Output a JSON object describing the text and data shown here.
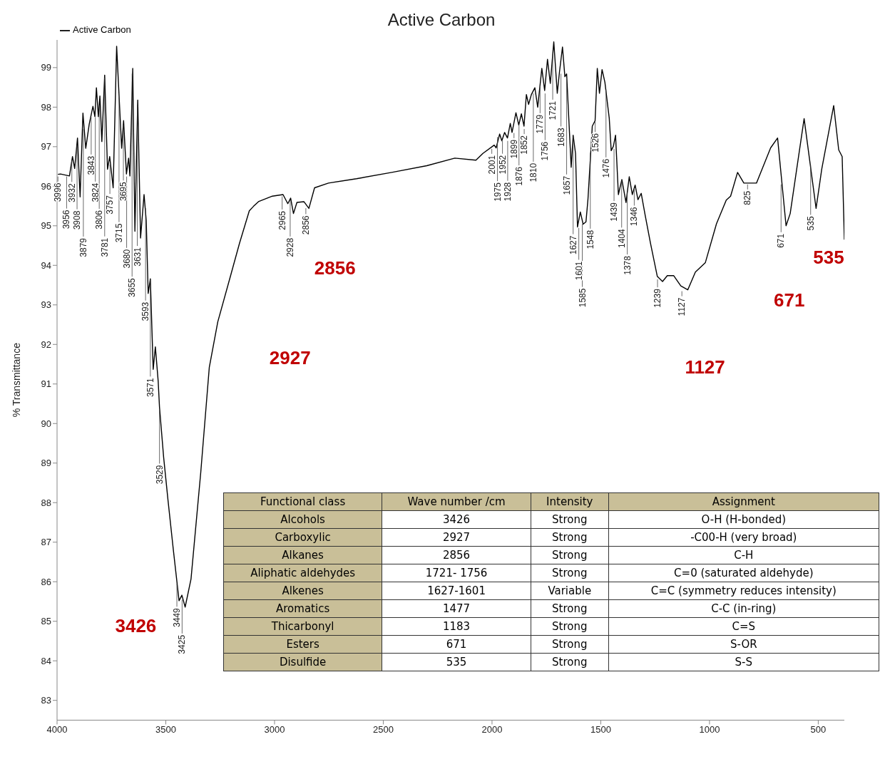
{
  "chart_data": [
    {
      "type": "line",
      "title": "Active Carbon",
      "ylabel": "% Transmittance",
      "xlim": [
        4000,
        380
      ],
      "xticks": [
        4000,
        3500,
        3000,
        2500,
        2000,
        1500,
        1000,
        500
      ],
      "ylim": [
        82.5,
        99.7
      ],
      "yticks": [
        83,
        84,
        85,
        86,
        87,
        88,
        89,
        90,
        91,
        92,
        93,
        94,
        95,
        96,
        97,
        98,
        99
      ],
      "grid": false,
      "legend": "top left",
      "marker": "none",
      "line_style": "solid",
      "series": [
        {
          "name": "Active Carbon",
          "color": "#000000",
          "x": [
            3996,
            3984,
            3943,
            3929,
            3919,
            3906,
            3894,
            3881,
            3868,
            3852,
            3835,
            3826,
            3819,
            3810,
            3803,
            3794,
            3781,
            3768,
            3758,
            3742,
            3726,
            3703,
            3694,
            3681,
            3671,
            3665,
            3652,
            3642,
            3629,
            3616,
            3600,
            3590,
            3581,
            3571,
            3558,
            3548,
            3535,
            3529,
            3510,
            3490,
            3465,
            3439,
            3426,
            3411,
            3384,
            3339,
            3300,
            3261,
            3200,
            3161,
            3116,
            3097,
            3074,
            3010,
            2961,
            2939,
            2926,
            2913,
            2897,
            2865,
            2842,
            2816,
            2752,
            2623,
            2461,
            2300,
            2171,
            2074,
            2042,
            1990,
            1981,
            1965,
            1955,
            1942,
            1929,
            1916,
            1908,
            1890,
            1877,
            1865,
            1853,
            1842,
            1832,
            1819,
            1803,
            1790,
            1771,
            1758,
            1745,
            1732,
            1716,
            1700,
            1690,
            1676,
            1665,
            1657,
            1636,
            1627,
            1616,
            1607,
            1594,
            1581,
            1568,
            1559,
            1539,
            1526,
            1516,
            1506,
            1494,
            1481,
            1461,
            1452,
            1442,
            1432,
            1419,
            1403,
            1384,
            1369,
            1355,
            1342,
            1329,
            1314,
            1295,
            1271,
            1240,
            1216,
            1194,
            1165,
            1132,
            1100,
            1065,
            1019,
            968,
            923,
            903,
            871,
            842,
            784,
            719,
            687,
            648,
            629,
            565,
            510,
            484,
            429,
            406,
            390,
            380
          ],
          "values": [
            96.3,
            96.31,
            96.26,
            96.75,
            96.45,
            97.22,
            95.73,
            97.85,
            96.96,
            97.57,
            98.02,
            97.76,
            98.49,
            97.76,
            98.28,
            97.13,
            98.81,
            96.43,
            96.75,
            95.96,
            99.54,
            96.96,
            97.66,
            96.31,
            96.71,
            96.26,
            98.98,
            94.86,
            98.18,
            94.69,
            95.79,
            95.14,
            93.29,
            93.66,
            91.37,
            91.94,
            91.07,
            90.42,
            89.15,
            88.07,
            86.79,
            85.52,
            85.66,
            85.36,
            86.07,
            88.78,
            91.42,
            92.57,
            93.78,
            94.56,
            95.38,
            95.49,
            95.61,
            95.75,
            95.79,
            95.56,
            95.7,
            95.31,
            95.59,
            95.61,
            95.44,
            95.96,
            96.08,
            96.19,
            96.35,
            96.52,
            96.71,
            96.66,
            96.83,
            97.04,
            96.97,
            97.32,
            97.15,
            97.36,
            97.22,
            97.59,
            97.36,
            97.86,
            97.55,
            97.83,
            97.52,
            98.32,
            98.07,
            98.32,
            98.49,
            98.0,
            98.98,
            98.42,
            99.21,
            98.6,
            99.65,
            98.35,
            98.88,
            99.52,
            98.77,
            98.84,
            96.48,
            97.29,
            96.83,
            94.97,
            95.35,
            95.04,
            95.1,
            95.66,
            97.52,
            97.66,
            98.98,
            98.35,
            98.95,
            98.63,
            97.72,
            96.9,
            97.01,
            97.29,
            95.79,
            96.17,
            95.59,
            96.24,
            95.79,
            96.03,
            95.66,
            95.82,
            95.24,
            94.55,
            93.72,
            93.59,
            93.74,
            93.74,
            93.48,
            93.38,
            93.83,
            94.07,
            95.05,
            95.65,
            95.75,
            96.35,
            96.08,
            96.08,
            96.97,
            97.22,
            95.0,
            95.31,
            97.71,
            95.44,
            96.43,
            98.04,
            96.92,
            96.75,
            94.65
          ]
        }
      ],
      "annotations": [
        {
          "text": "3996",
          "x": 3996,
          "y": 96.3
        },
        {
          "text": "3956",
          "x": 3956,
          "y": 96.3
        },
        {
          "text": "3932",
          "x": 3932,
          "y": 96.7
        },
        {
          "text": "3908",
          "x": 3908,
          "y": 97.1
        },
        {
          "text": "3879",
          "x": 3879,
          "y": 97.5
        },
        {
          "text": "3843",
          "x": 3843,
          "y": 97.8
        },
        {
          "text": "3824",
          "x": 3824,
          "y": 97.8
        },
        {
          "text": "3806",
          "x": 3806,
          "y": 98.1
        },
        {
          "text": "3781",
          "x": 3781,
          "y": 98.8
        },
        {
          "text": "3757",
          "x": 3757,
          "y": 96.6
        },
        {
          "text": "3715",
          "x": 3715,
          "y": 98.3
        },
        {
          "text": "3695",
          "x": 3695,
          "y": 97.6
        },
        {
          "text": "3680",
          "x": 3680,
          "y": 96.3
        },
        {
          "text": "3655",
          "x": 3655,
          "y": 98.9
        },
        {
          "text": "3631",
          "x": 3631,
          "y": 98.1
        },
        {
          "text": "3593",
          "x": 3593,
          "y": 95.5
        },
        {
          "text": "3571",
          "x": 3571,
          "y": 93.7
        },
        {
          "text": "3529",
          "x": 3529,
          "y": 90.4
        },
        {
          "text": "3449",
          "x": 3449,
          "y": 86.0
        },
        {
          "text": "3425",
          "x": 3425,
          "y": 85.6
        },
        {
          "text": "2965",
          "x": 2965,
          "y": 95.8
        },
        {
          "text": "2928",
          "x": 2928,
          "y": 95.7
        },
        {
          "text": "2856",
          "x": 2856,
          "y": 95.5
        },
        {
          "text": "2001",
          "x": 2001,
          "y": 97.0
        },
        {
          "text": "1975",
          "x": 1975,
          "y": 97.3
        },
        {
          "text": "1952",
          "x": 1952,
          "y": 97.2
        },
        {
          "text": "1928",
          "x": 1928,
          "y": 97.2
        },
        {
          "text": "1899",
          "x": 1899,
          "y": 97.4
        },
        {
          "text": "1876",
          "x": 1876,
          "y": 97.6
        },
        {
          "text": "1852",
          "x": 1852,
          "y": 97.5
        },
        {
          "text": "1810",
          "x": 1810,
          "y": 98.4
        },
        {
          "text": "1779",
          "x": 1779,
          "y": 98.6
        },
        {
          "text": "1756",
          "x": 1756,
          "y": 98.4
        },
        {
          "text": "1721",
          "x": 1721,
          "y": 99.4
        },
        {
          "text": "1683",
          "x": 1683,
          "y": 98.9
        },
        {
          "text": "1657",
          "x": 1657,
          "y": 98.8
        },
        {
          "text": "1627",
          "x": 1627,
          "y": 97.3
        },
        {
          "text": "1601",
          "x": 1601,
          "y": 95.0
        },
        {
          "text": "1585",
          "x": 1585,
          "y": 95.1
        },
        {
          "text": "1548",
          "x": 1548,
          "y": 96.9
        },
        {
          "text": "1526",
          "x": 1526,
          "y": 97.7
        },
        {
          "text": "1476",
          "x": 1476,
          "y": 98.5
        },
        {
          "text": "1439",
          "x": 1439,
          "y": 97.0
        },
        {
          "text": "1404",
          "x": 1404,
          "y": 96.2
        },
        {
          "text": "1378",
          "x": 1378,
          "y": 95.9
        },
        {
          "text": "1346",
          "x": 1346,
          "y": 96.0
        },
        {
          "text": "1239",
          "x": 1239,
          "y": 93.7
        },
        {
          "text": "1127",
          "x": 1127,
          "y": 93.4
        },
        {
          "text": "825",
          "x": 825,
          "y": 96.1
        },
        {
          "text": "671",
          "x": 671,
          "y": 96.1
        },
        {
          "text": "535",
          "x": 535,
          "y": 96.6
        },
        "3426",
        "2927",
        "2856",
        "1127",
        "671",
        "535"
      ]
    },
    {
      "type": "other",
      "categories": [
        "Functional class",
        "Wave number /cm",
        "Intensity",
        "Assignment"
      ],
      "cell_labels": [
        [
          "Alcohols",
          "3426",
          "Strong",
          "O-H (H-bonded)"
        ],
        [
          "Carboxylic",
          "2927",
          "Strong",
          "-C00-H (very broad)"
        ],
        [
          "Alkanes",
          "2856",
          "Strong",
          "C-H"
        ],
        [
          "Aliphatic aldehydes",
          "1721- 1756",
          "Strong",
          "C=0 (saturated aldehyde)"
        ],
        [
          "Alkenes",
          "1627-1601",
          "Variable",
          "C=C (symmetry reduces intensity)"
        ],
        [
          "Aromatics",
          "1477",
          "Strong",
          "C-C (in-ring)"
        ],
        [
          "Thicarbonyl",
          "1183",
          "Strong",
          "C=S"
        ],
        [
          "Esters",
          "671",
          "Strong",
          "S-OR"
        ],
        [
          "Disulfide",
          "535",
          "Strong",
          "S-S"
        ]
      ]
    }
  ]
}
